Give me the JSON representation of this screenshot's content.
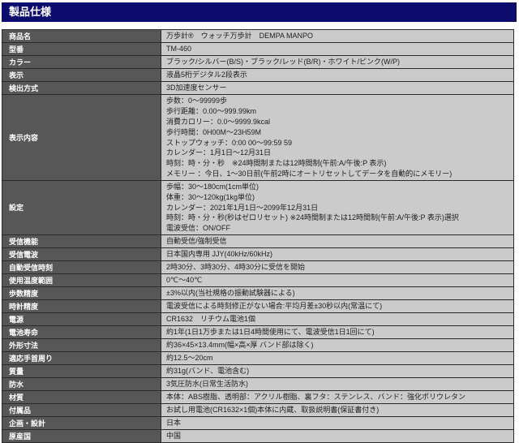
{
  "header": {
    "title": "製品仕様"
  },
  "colors": {
    "header_bg": "#0c0c6e",
    "label_bg": "#575757",
    "value_bg": "#cbcbcb",
    "border": "#2b2b2b",
    "header_text": "#ffffff",
    "value_text": "#1e1e1e"
  },
  "table": {
    "rows": [
      {
        "label": "商品名",
        "lines": [
          "万歩計®　ウォッチ万歩計　DEMPA MANPO"
        ]
      },
      {
        "label": "型番",
        "lines": [
          "TM-460"
        ]
      },
      {
        "label": "カラー",
        "lines": [
          "ブラック/シルバー(B/S)・ブラック/レッド(B/R)・ホワイト/ピンク(W/P)"
        ]
      },
      {
        "label": "表示",
        "lines": [
          "液晶5桁デジタル2段表示"
        ]
      },
      {
        "label": "検出方式",
        "lines": [
          "3D加速度センサー"
        ]
      },
      {
        "label": "表示内容",
        "lines": [
          "歩数：0～99999歩",
          "歩行距離：0.00～999.99km",
          "消費カロリー：0.0～9999.9kcal",
          "歩行時間：0H00M～23H59M",
          "ストップウォッチ：0:00 00～99:59 59",
          "カレンダー：1月1日～12月31日",
          "時刻：時・分・秒　※24時間制または12時間制(午前:A/午後:P 表示)",
          "メモリー ：今日、1～30日前(午前2時にオートリセットしてデータを自動的にメモリー)"
        ]
      },
      {
        "label": "設定",
        "lines": [
          "歩幅：30～180cm(1cm単位)",
          "体重：30～120kg(1kg単位)",
          "カレンダー：2021年1月1日～2099年12月31日",
          "時刻：時・分・秒(秒はゼロリセット) ※24時間制または12時間制(午前:A/午後:P 表示)選択",
          "電波受信：ON/OFF"
        ]
      },
      {
        "label": "受信機能",
        "lines": [
          "自動受信/強制受信"
        ]
      },
      {
        "label": "受信電波",
        "lines": [
          "日本国内専用 JJY(40kHz/60kHz)"
        ]
      },
      {
        "label": "自動受信時刻",
        "lines": [
          "2時30分、3時30分、4時30分に受信を開始"
        ]
      },
      {
        "label": "使用温度範囲",
        "lines": [
          "0℃～40℃"
        ]
      },
      {
        "label": "歩数精度",
        "lines": [
          "±3%以内(当社規格の振動試験器による)"
        ]
      },
      {
        "label": "時計精度",
        "lines": [
          "電波受信による時刻修正がない場合:平均月差±30秒以内(常温にて)"
        ]
      },
      {
        "label": "電源",
        "lines": [
          "CR1632　リチウム電池1個"
        ]
      },
      {
        "label": "電池寿命",
        "lines": [
          "約1年(1日1万歩または1日4時間使用にて、電波受信1日1回にて)"
        ]
      },
      {
        "label": "外形寸法",
        "lines": [
          "約36×45×13.4mm(幅×高×厚 バンド部は除く)"
        ]
      },
      {
        "label": "適応手首周り",
        "lines": [
          "約12.5～20cm"
        ]
      },
      {
        "label": "質量",
        "lines": [
          "約31g(バンド、電池含む)"
        ]
      },
      {
        "label": "防水",
        "lines": [
          "3気圧防水(日常生活防水)"
        ]
      },
      {
        "label": "材質",
        "lines": [
          "本体：ABS樹脂、透明部：アクリル樹脂、裏フタ：ステンレス、バンド：強化ポリウレタン"
        ]
      },
      {
        "label": "付属品",
        "lines": [
          "お試し用電池(CR1632×1個)本体に内蔵、取扱説明書(保証書付き)"
        ]
      },
      {
        "label": "企画・設計",
        "lines": [
          "日本"
        ]
      },
      {
        "label": "原産国",
        "lines": [
          "中国"
        ]
      }
    ]
  }
}
